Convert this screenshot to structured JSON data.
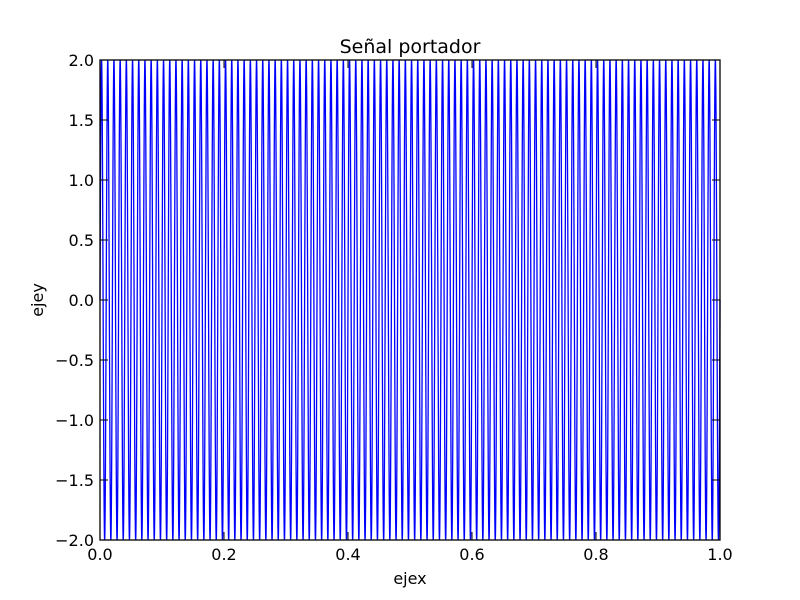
{
  "chart_data": {
    "type": "line",
    "title": "Señal portador",
    "xlabel": "ejex",
    "ylabel": "ejey",
    "xlim": [
      0.0,
      1.0
    ],
    "ylim": [
      -2.0,
      2.0
    ],
    "x_ticks": [
      0.0,
      0.2,
      0.4,
      0.6,
      0.8,
      1.0
    ],
    "x_tick_labels": [
      "0.0",
      "0.2",
      "0.4",
      "0.6",
      "0.8",
      "1.0"
    ],
    "y_ticks": [
      2.0,
      1.5,
      1.0,
      0.5,
      0.0,
      -0.5,
      -1.0,
      -1.5,
      -2.0
    ],
    "y_tick_labels": [
      "2.0",
      "1.5",
      "1.0",
      "0.5",
      "0.0",
      "−0.5",
      "−1.0",
      "−1.5",
      "−2.0"
    ],
    "grid": false,
    "legend": false,
    "series": [
      {
        "function": "sine",
        "amplitude": 2.0,
        "frequency": 100,
        "phase": 0,
        "x_start": 0.0,
        "x_end": 1.0,
        "color": "#0000ff"
      }
    ]
  }
}
